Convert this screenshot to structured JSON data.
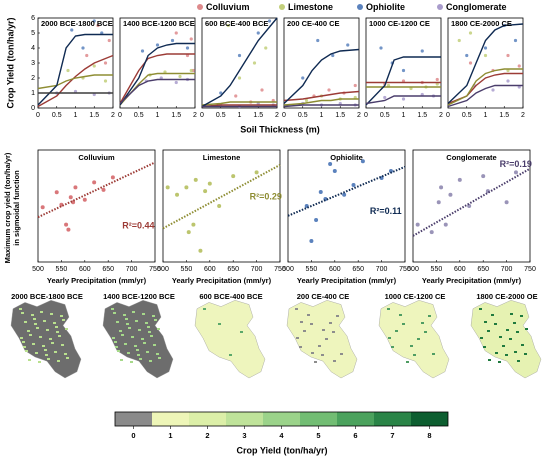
{
  "legend": [
    {
      "name": "Colluvium",
      "color": "#de8a8c"
    },
    {
      "name": "Limestone",
      "color": "#c2cf7a"
    },
    {
      "name": "Ophiolite",
      "color": "#5b82bd"
    },
    {
      "name": "Conglomerate",
      "color": "#a99ccc"
    }
  ],
  "top_ylabel": "Crop Yield (ton/ha/yr)",
  "top_xlabel": "Soil Thickness (m)",
  "mid_ylabel": [
    "Maximum crop yield (ton/ha/yr)",
    "in sigmoidal function"
  ],
  "chart_data": [
    {
      "type": "curves",
      "title": "2000 BCE-1800 BCE",
      "xlim": [
        0,
        2
      ],
      "xticks": [
        0,
        0.5,
        1,
        1.5,
        2
      ],
      "ylim": [
        0,
        6
      ],
      "yticks": [
        0,
        1,
        2,
        3,
        4,
        5,
        6
      ],
      "curve_x": [
        0,
        0.5,
        0.75,
        1,
        1.25,
        1.5,
        2
      ],
      "series": [
        {
          "color": "#de8a8c",
          "line_color": "#9c3b36",
          "x": [
            1.3,
            1.6,
            1.8,
            1.9
          ],
          "values": [
            3.5,
            5.5,
            3.0,
            4.5
          ],
          "curve": [
            0.1,
            0.8,
            1.5,
            2.1,
            2.6,
            3.0,
            3.5
          ]
        },
        {
          "color": "#c2cf7a",
          "line_color": "#8e8d33",
          "x": [
            0.8,
            1.2,
            1.5,
            1.8
          ],
          "values": [
            2.5,
            2.0,
            2.8,
            1.8
          ],
          "curve": [
            1.3,
            1.5,
            1.8,
            2.0,
            2.1,
            2.2,
            2.2
          ]
        },
        {
          "color": "#5b82bd",
          "line_color": "#0f2a52",
          "x": [
            0.9,
            1.2,
            1.5,
            1.7
          ],
          "values": [
            5.2,
            4.0,
            5.8,
            5.0
          ],
          "curve": [
            0.2,
            1.5,
            4.0,
            4.8,
            4.9,
            4.9,
            4.9
          ]
        },
        {
          "color": "#a99ccc",
          "line_color": "#3c3c3c",
          "x": [
            0.5,
            1.0,
            1.5,
            1.9
          ],
          "values": [
            1.0,
            1.1,
            0.9,
            1.0
          ],
          "curve": [
            1,
            1,
            1,
            1,
            1,
            1,
            1
          ]
        }
      ]
    },
    {
      "type": "curves",
      "title": "1400 BCE-1200 BCE",
      "xlim": [
        0,
        2
      ],
      "xticks": [
        0,
        0.5,
        1,
        1.5,
        2
      ],
      "ylim": [
        0,
        6
      ],
      "curve_x": [
        0,
        0.5,
        0.75,
        1,
        1.25,
        1.5,
        2
      ],
      "series": [
        {
          "color": "#de8a8c",
          "line_color": "#9c3b36",
          "x": [
            1.5,
            1.8,
            1.9,
            1.95
          ],
          "values": [
            5.0,
            3.5,
            4.6,
            2.5
          ],
          "curve": [
            0.3,
            2.5,
            3.3,
            3.5,
            3.6,
            3.6,
            3.6
          ]
        },
        {
          "color": "#c2cf7a",
          "line_color": "#8e8d33",
          "x": [
            0.8,
            1.2,
            1.6,
            1.9
          ],
          "values": [
            2.2,
            2.4,
            2.1,
            2.5
          ],
          "curve": [
            0.2,
            1.6,
            2.2,
            2.3,
            2.3,
            2.3,
            2.3
          ]
        },
        {
          "color": "#5b82bd",
          "line_color": "#0f2a52",
          "x": [
            0.6,
            1.0,
            1.4,
            1.8
          ],
          "values": [
            3.8,
            4.2,
            4.5,
            4.0
          ],
          "curve": [
            0.2,
            2.0,
            3.5,
            4.0,
            4.2,
            4.3,
            4.3
          ]
        },
        {
          "color": "#a99ccc",
          "line_color": "#4a3d6b",
          "x": [
            0.7,
            1.1,
            1.5,
            1.8
          ],
          "values": [
            1.8,
            2.0,
            1.7,
            1.9
          ],
          "curve": [
            0.3,
            1.5,
            1.8,
            1.9,
            1.9,
            1.9,
            1.9
          ]
        }
      ]
    },
    {
      "type": "curves",
      "title": "600 BCE-400 BCE",
      "xlim": [
        0,
        2
      ],
      "xticks": [
        0,
        0.5,
        1,
        1.5,
        2
      ],
      "ylim": [
        0,
        6
      ],
      "curve_x": [
        0,
        0.5,
        0.75,
        1,
        1.25,
        1.5,
        2
      ],
      "series": [
        {
          "color": "#de8a8c",
          "line_color": "#9c3b36",
          "x": [
            0.9,
            1.3,
            1.6,
            1.9
          ],
          "values": [
            0.8,
            0.4,
            1.2,
            0.5
          ],
          "curve": [
            0.1,
            0.2,
            0.2,
            0.2,
            0.2,
            0.2,
            0.2
          ]
        },
        {
          "color": "#c2cf7a",
          "line_color": "#8e8d33",
          "x": [
            0.7,
            1.0,
            1.4,
            1.7
          ],
          "values": [
            5.5,
            2.0,
            3.0,
            4.0
          ],
          "curve": [
            0.2,
            0.3,
            0.4,
            0.4,
            0.4,
            0.4,
            0.4
          ]
        },
        {
          "color": "#5b82bd",
          "line_color": "#0f2a52",
          "x": [
            0.5,
            1.0,
            1.5,
            1.8
          ],
          "values": [
            1.0,
            3.5,
            5.0,
            5.8
          ],
          "curve": [
            0.1,
            0.8,
            1.5,
            2.5,
            3.5,
            4.5,
            6.0
          ]
        },
        {
          "color": "#a99ccc",
          "line_color": "#4a3d6b",
          "x": [
            0.5,
            1.0,
            1.5,
            1.9
          ],
          "values": [
            0.2,
            0.1,
            0.3,
            0.2
          ],
          "curve": [
            0.1,
            0.1,
            0.1,
            0.1,
            0.1,
            0.1,
            0.1
          ]
        }
      ]
    },
    {
      "type": "curves",
      "title": "200 CE-400 CE",
      "xlim": [
        0,
        2
      ],
      "xticks": [
        0,
        0.5,
        1,
        1.5,
        2
      ],
      "ylim": [
        0,
        6
      ],
      "curve_x": [
        0,
        0.5,
        0.75,
        1,
        1.25,
        1.5,
        2
      ],
      "series": [
        {
          "color": "#de8a8c",
          "line_color": "#9c3b36",
          "x": [
            0.8,
            1.2,
            1.6,
            1.9
          ],
          "values": [
            0.8,
            1.2,
            1.0,
            1.5
          ],
          "curve": [
            0.5,
            0.6,
            0.7,
            0.8,
            0.9,
            1.0,
            1.1
          ]
        },
        {
          "color": "#c2cf7a",
          "line_color": "#8e8d33",
          "x": [
            0.6,
            1.0,
            1.5,
            1.9
          ],
          "values": [
            0.5,
            0.8,
            0.6,
            0.7
          ],
          "curve": [
            0.2,
            0.3,
            0.4,
            0.5,
            0.5,
            0.6,
            0.6
          ]
        },
        {
          "color": "#5b82bd",
          "line_color": "#0f2a52",
          "x": [
            0.5,
            0.9,
            1.3,
            1.7
          ],
          "values": [
            2.0,
            4.5,
            3.5,
            4.2
          ],
          "curve": [
            0.3,
            1.5,
            2.5,
            3.2,
            3.6,
            3.8,
            3.9
          ]
        },
        {
          "color": "#a99ccc",
          "line_color": "#4a3d6b",
          "x": [
            0.5,
            1.0,
            1.5,
            1.9
          ],
          "values": [
            0.3,
            0.2,
            0.3,
            0.2
          ],
          "curve": [
            0.1,
            0.2,
            0.2,
            0.2,
            0.2,
            0.2,
            0.2
          ]
        }
      ]
    },
    {
      "type": "curves",
      "title": "1000 CE-1200 CE",
      "xlim": [
        0,
        2
      ],
      "xticks": [
        0,
        0.5,
        1,
        1.5,
        2
      ],
      "ylim": [
        0,
        6
      ],
      "curve_x": [
        0,
        0.5,
        0.75,
        1,
        1.25,
        1.5,
        2
      ],
      "series": [
        {
          "color": "#de8a8c",
          "line_color": "#9c3b36",
          "x": [
            0.5,
            1.0,
            1.5,
            1.9
          ],
          "values": [
            1.6,
            1.8,
            1.7,
            1.9
          ],
          "curve": [
            1.7,
            1.7,
            1.7,
            1.7,
            1.7,
            1.7,
            1.7
          ]
        },
        {
          "color": "#c2cf7a",
          "line_color": "#8e8d33",
          "x": [
            0.6,
            1.2,
            1.6,
            1.9
          ],
          "values": [
            1.5,
            1.3,
            1.4,
            1.6
          ],
          "curve": [
            1.4,
            1.4,
            1.4,
            1.4,
            1.4,
            1.4,
            1.4
          ]
        },
        {
          "color": "#5b82bd",
          "line_color": "#0f2a52",
          "x": [
            0.4,
            0.7,
            1.0,
            1.5
          ],
          "values": [
            4.0,
            3.0,
            2.5,
            3.8
          ],
          "curve": [
            0.2,
            1.5,
            3.2,
            3.4,
            3.4,
            3.4,
            3.4
          ]
        },
        {
          "color": "#a99ccc",
          "line_color": "#4a3d6b",
          "x": [
            0.5,
            1.0,
            1.5,
            1.8
          ],
          "values": [
            0.7,
            0.6,
            0.9,
            0.8
          ],
          "curve": [
            0.3,
            0.5,
            0.8,
            0.8,
            0.8,
            0.8,
            0.8
          ]
        }
      ]
    },
    {
      "type": "curves",
      "title": "1800 CE-2000 CE",
      "xlim": [
        0,
        2
      ],
      "xticks": [
        0,
        0.5,
        1,
        1.5,
        2
      ],
      "ylim": [
        0,
        6
      ],
      "curve_x": [
        0,
        0.5,
        0.75,
        1,
        1.25,
        1.5,
        2
      ],
      "series": [
        {
          "color": "#de8a8c",
          "line_color": "#9c3b36",
          "x": [
            0.6,
            1.2,
            1.6,
            1.9
          ],
          "values": [
            3.0,
            2.5,
            3.5,
            2.8
          ],
          "curve": [
            0.3,
            0.8,
            1.5,
            2.0,
            2.2,
            2.3,
            2.3
          ]
        },
        {
          "color": "#c2cf7a",
          "line_color": "#8e8d33",
          "x": [
            0.3,
            0.6,
            1.0,
            1.6
          ],
          "values": [
            4.5,
            5.0,
            3.5,
            2.5
          ],
          "curve": [
            0.2,
            0.8,
            1.8,
            2.3,
            2.5,
            2.6,
            2.6
          ]
        },
        {
          "color": "#5b82bd",
          "line_color": "#0f2a52",
          "x": [
            0.5,
            1.0,
            1.5,
            1.8
          ],
          "values": [
            3.5,
            4.0,
            5.5,
            4.5
          ],
          "curve": [
            0.3,
            1.5,
            3.0,
            4.5,
            5.2,
            5.5,
            5.6
          ]
        },
        {
          "color": "#a99ccc",
          "line_color": "#4a3d6b",
          "x": [
            0.7,
            1.2,
            1.6,
            1.9
          ],
          "values": [
            1.5,
            1.2,
            1.8,
            1.4
          ],
          "curve": [
            0.1,
            0.5,
            1.0,
            1.3,
            1.5,
            1.5,
            1.5
          ]
        }
      ]
    },
    {
      "type": "scatter",
      "title": "Colluvium",
      "xlabel": "Yearly Precipitation (mm/yr)",
      "xlim": [
        500,
        750
      ],
      "xticks": [
        500,
        550,
        600,
        650,
        700,
        750
      ],
      "ylim": [
        0,
        4.5
      ],
      "color": "#d9777a",
      "line_color": "#9c3b36",
      "x": [
        510,
        540,
        550,
        560,
        565,
        570,
        575,
        580,
        600,
        620,
        640,
        660
      ],
      "values": [
        2.2,
        2.8,
        2.3,
        1.5,
        1.3,
        2.6,
        2.4,
        3.0,
        2.5,
        3.2,
        2.9,
        3.4
      ],
      "trend_x": [
        500,
        750
      ],
      "trend": [
        1.8,
        4.0
      ],
      "annotation": "R²=0.44"
    },
    {
      "type": "scatter",
      "title": "Limestone",
      "xlabel": "Yearly Precipitation (mm/yr)",
      "xlim": [
        500,
        750
      ],
      "xticks": [
        500,
        550,
        600,
        650,
        700,
        750
      ],
      "ylim": [
        0,
        3
      ],
      "color": "#bcc56e",
      "line_color": "#8e8d33",
      "x": [
        510,
        530,
        550,
        555,
        565,
        570,
        580,
        590,
        600,
        620,
        650,
        700
      ],
      "values": [
        2.0,
        1.8,
        2.0,
        0.8,
        1.0,
        2.2,
        0.3,
        1.9,
        2.1,
        1.5,
        2.3,
        2.4
      ],
      "trend_x": [
        500,
        750
      ],
      "trend": [
        0.9,
        2.6
      ],
      "annotation": "R²=0.29"
    },
    {
      "type": "scatter",
      "title": "Ophiolite",
      "xlabel": "Yearly Precipitation (mm/yr)",
      "xlim": [
        500,
        750
      ],
      "xticks": [
        500,
        550,
        600,
        650,
        700,
        750
      ],
      "ylim": [
        0,
        8
      ],
      "color": "#5b82bd",
      "line_color": "#0f2a52",
      "x": [
        540,
        550,
        560,
        570,
        580,
        590,
        600,
        620,
        640,
        660,
        700,
        720
      ],
      "values": [
        4.0,
        1.5,
        3.0,
        5.0,
        4.5,
        7.0,
        6.5,
        4.8,
        5.5,
        7.2,
        6.0,
        6.5
      ],
      "trend_x": [
        500,
        750
      ],
      "trend": [
        3.3,
        6.8
      ],
      "annotation": "R²=0.11"
    },
    {
      "type": "scatter",
      "title": "Conglomerate",
      "xlabel": "Yearly Precipitation (mm/yr)",
      "xlim": [
        500,
        750
      ],
      "xticks": [
        500,
        550,
        600,
        650,
        700,
        750
      ],
      "ylim": [
        0,
        3
      ],
      "color": "#9a94b8",
      "line_color": "#4a3d6b",
      "x": [
        510,
        540,
        555,
        560,
        570,
        580,
        600,
        620,
        650,
        660,
        700,
        720
      ],
      "values": [
        1.0,
        0.8,
        1.6,
        2.0,
        1.0,
        1.8,
        2.2,
        1.5,
        2.3,
        1.9,
        1.6,
        2.4
      ],
      "trend_x": [
        500,
        750
      ],
      "trend": [
        0.7,
        2.5
      ],
      "annotation": "R²=0.19"
    }
  ],
  "maps": [
    {
      "title": "2000 BCE-1800 BCE"
    },
    {
      "title": "1400 BCE-1200 BCE"
    },
    {
      "title": "600 BCE-400 BCE"
    },
    {
      "title": "200 CE-400 CE"
    },
    {
      "title": "1000 CE-1200 CE"
    },
    {
      "title": "1800 CE-2000 OE"
    }
  ],
  "colorbar": {
    "ticks": [
      0,
      1,
      2,
      3,
      4,
      5,
      6,
      7,
      8
    ],
    "colors": [
      "#8a8a8a",
      "#eef6b8",
      "#dcefa8",
      "#bfe39a",
      "#9bd38a",
      "#72bd73",
      "#4ba25d",
      "#2a8447",
      "#0d5e30"
    ],
    "label": "Crop Yield (ton/ha/yr)"
  }
}
